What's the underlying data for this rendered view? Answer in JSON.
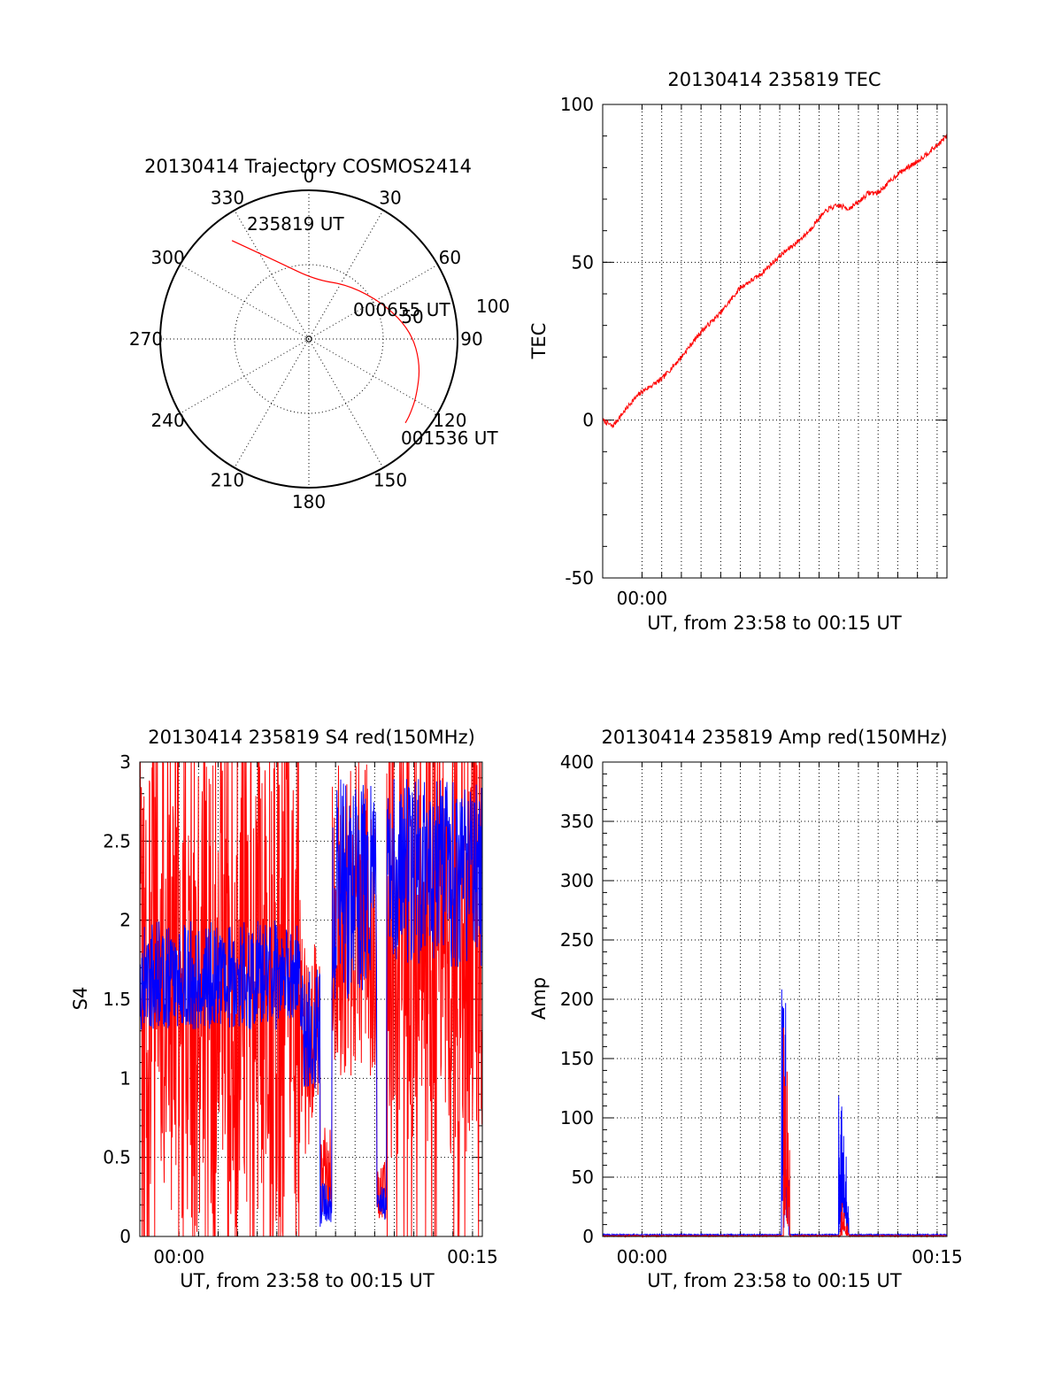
{
  "colors": {
    "red": "#ff0000",
    "blue": "#0000ff",
    "axis": "#000000"
  },
  "chart_data": [
    {
      "type": "polar",
      "title": "20130414 Trajectory COSMOS2414",
      "angle_labels": [
        "0",
        "30",
        "60",
        "90",
        "120",
        "150",
        "180",
        "210",
        "240",
        "270",
        "300",
        "330"
      ],
      "radial_labels": [
        "50",
        "100"
      ],
      "rlim": [
        0,
        100
      ],
      "series": [
        {
          "color": "#ff0000",
          "points": [
            {
              "az": 322,
              "r": 84
            },
            {
              "az": 338,
              "r": 56
            },
            {
              "az": 6,
              "r": 40
            },
            {
              "az": 36,
              "r": 45
            },
            {
              "az": 65,
              "r": 56
            },
            {
              "az": 86,
              "r": 69
            },
            {
              "az": 103,
              "r": 77
            },
            {
              "az": 118,
              "r": 82
            },
            {
              "az": 127,
              "r": 85
            },
            {
              "az": 131,
              "r": 86
            }
          ]
        }
      ],
      "annotations": [
        "235819 UT",
        "000655 UT",
        "001536 UT"
      ]
    },
    {
      "type": "line",
      "title": "20130414 235819 TEC",
      "xlabel": "UT, from 23:58 to 00:15 UT",
      "ylabel": "TEC",
      "x_ticklabels": [
        "00:00"
      ],
      "y_ticklabels": [
        "-50",
        "0",
        "50",
        "100"
      ],
      "xlim": [
        0,
        17.5
      ],
      "ylim": [
        -50,
        100
      ],
      "grid": true,
      "series": [
        {
          "color": "#ff0000",
          "x": [
            0,
            0.5,
            1,
            1.5,
            2,
            3,
            4,
            5,
            6,
            7,
            8,
            9,
            10,
            10.5,
            11,
            11.5,
            12,
            12.5,
            13,
            13.5,
            14,
            15,
            16,
            17,
            17.5
          ],
          "y": [
            0,
            -2,
            2,
            6,
            9,
            13,
            20,
            28,
            34,
            42,
            46,
            52,
            57,
            60,
            64,
            67,
            68,
            67,
            69,
            72,
            72,
            78,
            82,
            87,
            90
          ]
        }
      ]
    },
    {
      "type": "line",
      "title": "20130414 235819 S4 red(150MHz)",
      "xlabel": "UT, from 23:58 to 00:15 UT",
      "ylabel": "S4",
      "x_ticklabels": [
        "00:00",
        "00:15"
      ],
      "y_ticklabels": [
        "0",
        "0.5",
        "1",
        "1.5",
        "2",
        "2.5",
        "3"
      ],
      "xlim": [
        0,
        17.5
      ],
      "ylim": [
        0,
        3
      ],
      "grid": true,
      "series": [
        {
          "color": "#ff0000",
          "segments": [
            {
              "x0": 0,
              "x1": 8.2,
              "mean": 1.6,
              "amp": 1.6
            },
            {
              "x0": 8.2,
              "x1": 9.2,
              "mean": 1.2,
              "amp": 0.7
            },
            {
              "x0": 9.2,
              "x1": 9.8,
              "mean": 0.4,
              "amp": 0.3
            },
            {
              "x0": 9.8,
              "x1": 12.1,
              "mean": 2.0,
              "amp": 1.0
            },
            {
              "x0": 12.1,
              "x1": 12.6,
              "mean": 0.3,
              "amp": 0.2
            },
            {
              "x0": 12.6,
              "x1": 17.5,
              "mean": 1.9,
              "amp": 1.4
            }
          ]
        },
        {
          "color": "#0000ff",
          "segments": [
            {
              "x0": 0,
              "x1": 8.2,
              "mean": 1.65,
              "amp": 0.35
            },
            {
              "x0": 8.2,
              "x1": 9.2,
              "mean": 1.3,
              "amp": 0.4
            },
            {
              "x0": 9.2,
              "x1": 9.8,
              "mean": 0.2,
              "amp": 0.15
            },
            {
              "x0": 9.8,
              "x1": 12.1,
              "mean": 2.2,
              "amp": 0.7
            },
            {
              "x0": 12.1,
              "x1": 12.6,
              "mean": 0.2,
              "amp": 0.12
            },
            {
              "x0": 12.6,
              "x1": 17.5,
              "mean": 2.3,
              "amp": 0.6
            }
          ]
        }
      ]
    },
    {
      "type": "line",
      "title": "20130414 235819 Amp red(150MHz)",
      "xlabel": "UT, from 23:58 to 00:15 UT",
      "ylabel": "Amp",
      "x_ticklabels": [
        "00:00",
        "00:15"
      ],
      "y_ticklabels": [
        "0",
        "50",
        "100",
        "150",
        "200",
        "250",
        "300",
        "350",
        "400"
      ],
      "xlim": [
        0,
        17.5
      ],
      "ylim": [
        0,
        400
      ],
      "grid": true,
      "series": [
        {
          "color": "#0000ff",
          "bursts": [
            {
              "x0": 9.1,
              "x1": 9.45,
              "peak": 232,
              "floor": 80
            },
            {
              "x0": 12.0,
              "x1": 12.5,
              "peak": 110,
              "floor": 30
            }
          ],
          "baseline": 1
        },
        {
          "color": "#ff0000",
          "bursts": [
            {
              "x0": 9.2,
              "x1": 9.5,
              "peak": 215,
              "floor": 60
            },
            {
              "x0": 12.1,
              "x1": 12.5,
              "peak": 28,
              "floor": 5
            }
          ],
          "baseline": 0
        }
      ]
    }
  ]
}
